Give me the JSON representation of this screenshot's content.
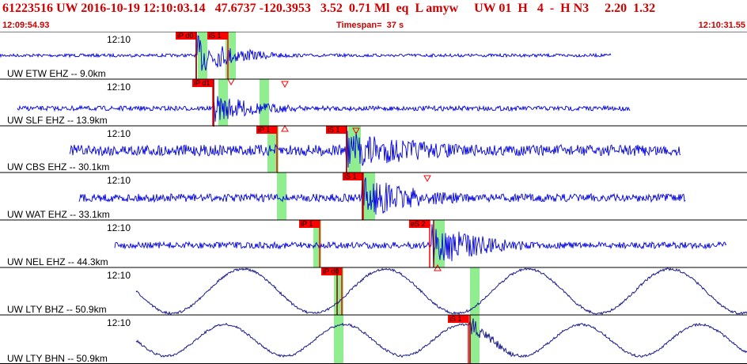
{
  "header": {
    "title": "61223516 UW 2016-10-19 12:10:03.14   47.6737 -120.3953   3.52  0.71 Ml  eq  L amyw     UW 01  H   4  -  H N3     2.20  1.32",
    "start_time": "12:09:54.93",
    "timespan": "Timespan=  37 s",
    "end_time": "12:10:31.55"
  },
  "colors": {
    "header": "#d00000",
    "trace_event": "#0000dd",
    "trace_longperiod": "#1a1a8c",
    "pick": "#ff0000",
    "pick_window": "#90ee90",
    "divider": "#000000"
  },
  "channels": [
    {
      "label": "UW ETW EHZ -- 9.0km",
      "time_label": "12:10",
      "picks": [
        "iP d0",
        "iS 1"
      ],
      "period": "short"
    },
    {
      "label": "UW SLF EHZ -- 13.9km",
      "time_label": "12:10",
      "picks": [
        "iP d1"
      ],
      "period": "short"
    },
    {
      "label": "UW CBS EHZ -- 30.1km",
      "time_label": "12:10",
      "picks": [
        "iP 1",
        "iS 1"
      ],
      "period": "short"
    },
    {
      "label": "UW WAT EHZ -- 33.1km",
      "time_label": "12:10",
      "picks": [
        "iS 1"
      ],
      "period": "short"
    },
    {
      "label": "UW NEL EHZ -- 44.3km",
      "time_label": "12:10",
      "picks": [
        "iP 1",
        "eS 2"
      ],
      "period": "short"
    },
    {
      "label": "UW LTY BHZ -- 50.9km",
      "time_label": "12:10",
      "picks": [
        "iP d0"
      ],
      "period": "long"
    },
    {
      "label": "UW LTY BHN -- 50.9km",
      "time_label": "12:10",
      "picks": [
        "iS 1"
      ],
      "period": "long"
    }
  ]
}
